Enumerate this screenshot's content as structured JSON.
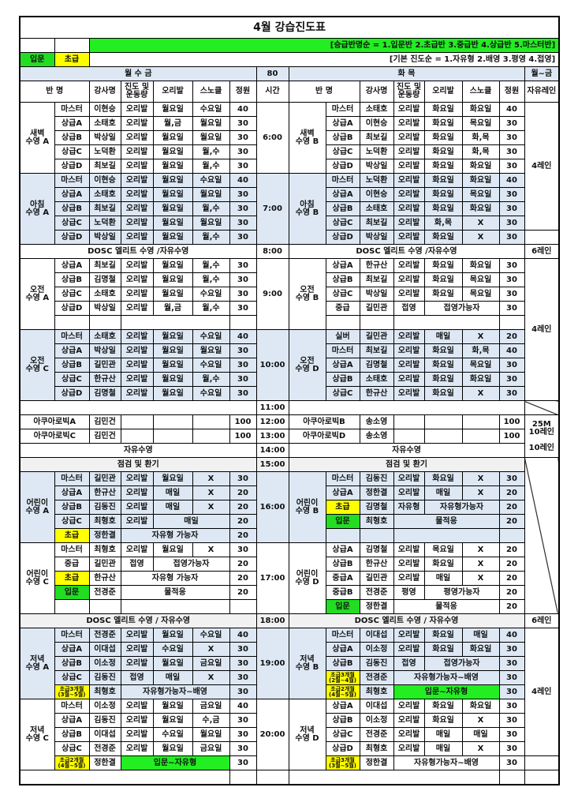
{
  "title": "4월 강습진도표",
  "legend": {
    "order_note": "[승급반명순 = 1.입문반 2.초급반 3.중급반 4.상급반 5.마스터반]",
    "progress_note": "[기본 진도순 = 1.자유형 2.배영 3.평영 4.접영]",
    "intro_label": "입문",
    "beginner_label": "초급"
  },
  "colors": {
    "intro": "#22dd22",
    "beginner": "#ffff00",
    "shade": "#dde8f4",
    "green_bar": "#22ee22"
  },
  "days": {
    "left": "월 수 금",
    "left_count": "80",
    "right": "화 목",
    "right_lane": "월~금"
  },
  "headers": {
    "class": "반 명",
    "teacher": "강사명",
    "progress": "진도 및\n운동량",
    "fins": "오리발",
    "snorkel": "스노클",
    "capacity": "정원",
    "time": "시간",
    "free_lane": "자유레인"
  },
  "lanes": {
    "l4": "4레인",
    "l6": "6레인",
    "l25": "25M\n10레인",
    "l10": "10레인"
  },
  "schedule": [
    {
      "type": "pair",
      "shade": false,
      "left": {
        "name": "새벽\n수영 A",
        "time": "6:00",
        "rows": [
          {
            "l": "마스터",
            "t": "이현승",
            "p": "오리발",
            "f": "월요일",
            "s": "수요일",
            "c": "40"
          },
          {
            "l": "상급A",
            "t": "소태호",
            "p": "오리발",
            "f": "월,금",
            "s": "월요일",
            "c": "30"
          },
          {
            "l": "상급B",
            "t": "박상일",
            "p": "오리발",
            "f": "월요일",
            "s": "월요일",
            "c": "30"
          },
          {
            "l": "상급C",
            "t": "노덕환",
            "p": "오리발",
            "f": "월요일",
            "s": "월,수",
            "c": "30"
          },
          {
            "l": "상급D",
            "t": "최보길",
            "p": "오리발",
            "f": "월요일",
            "s": "월,수",
            "c": "30"
          }
        ]
      },
      "right": {
        "name": "새벽\n수영 B",
        "rows": [
          {
            "l": "마스터",
            "t": "소태호",
            "p": "오리발",
            "f": "화요일",
            "s": "화요일",
            "c": "40"
          },
          {
            "l": "상급A",
            "t": "이현승",
            "p": "오리발",
            "f": "화요일",
            "s": "목요일",
            "c": "30"
          },
          {
            "l": "상급B",
            "t": "최보길",
            "p": "오리발",
            "f": "화요일",
            "s": "화,목",
            "c": "30"
          },
          {
            "l": "상급C",
            "t": "노덕환",
            "p": "오리발",
            "f": "화요일",
            "s": "화,목",
            "c": "30"
          },
          {
            "l": "상급D",
            "t": "박상일",
            "p": "오리발",
            "f": "화요일",
            "s": "화요일",
            "c": "30"
          }
        ]
      }
    },
    {
      "type": "pair",
      "shade": true,
      "left": {
        "name": "아침\n수영 A",
        "time": "7:00",
        "rows": [
          {
            "l": "마스터",
            "t": "이현승",
            "p": "오리발",
            "f": "월요일",
            "s": "수요일",
            "c": "40"
          },
          {
            "l": "상급A",
            "t": "소태호",
            "p": "오리발",
            "f": "월요일",
            "s": "월요일",
            "c": "30"
          },
          {
            "l": "상급B",
            "t": "최보길",
            "p": "오리발",
            "f": "월요일",
            "s": "월,수",
            "c": "30"
          },
          {
            "l": "상급C",
            "t": "노덕환",
            "p": "오리발",
            "f": "월요일",
            "s": "월요일",
            "c": "30"
          },
          {
            "l": "상급D",
            "t": "박상일",
            "p": "오리발",
            "f": "월요일",
            "s": "월,수",
            "c": "30"
          }
        ]
      },
      "right": {
        "name": "아침\n수영 B",
        "rows": [
          {
            "l": "마스터",
            "t": "노덕환",
            "p": "오리발",
            "f": "화요일",
            "s": "화요일",
            "c": "40"
          },
          {
            "l": "상급A",
            "t": "이현승",
            "p": "오리발",
            "f": "화요일",
            "s": "목요일",
            "c": "30"
          },
          {
            "l": "상급B",
            "t": "소태호",
            "p": "오리발",
            "f": "화요일",
            "s": "화요일",
            "c": "30"
          },
          {
            "l": "상급C",
            "t": "최보길",
            "p": "오리발",
            "f": "화,목",
            "s": "X",
            "c": "30"
          },
          {
            "l": "상급D",
            "t": "박상일",
            "p": "오리발",
            "f": "화요일",
            "s": "X",
            "c": "30"
          }
        ]
      }
    },
    {
      "type": "full",
      "gray": false,
      "left": "DOSC 엘리트 수영 /자유수영",
      "time": "8:00",
      "right": "DOSC 엘리트 수영 /자유수영"
    },
    {
      "type": "pair",
      "shade": false,
      "left": {
        "name": "오전\n수영 A",
        "time": "9:00",
        "rows": [
          {
            "l": "상급A",
            "t": "최보길",
            "p": "오리발",
            "f": "월요일",
            "s": "월,수",
            "c": "30"
          },
          {
            "l": "상급B",
            "t": "김명철",
            "p": "오리발",
            "f": "월요일",
            "s": "월,수",
            "c": "30"
          },
          {
            "l": "상급C",
            "t": "소태호",
            "p": "오리발",
            "f": "월요일",
            "s": "수요일",
            "c": "30"
          },
          {
            "l": "상급D",
            "t": "박상일",
            "p": "오리발",
            "f": "월,금",
            "s": "월,수",
            "c": "30"
          },
          {}
        ]
      },
      "right": {
        "name": "오전\n수영 B",
        "rows": [
          {
            "l": "상급A",
            "t": "한규산",
            "p": "오리발",
            "f": "화요일",
            "s": "화요일",
            "c": "30"
          },
          {
            "l": "상급B",
            "t": "최보길",
            "p": "오리발",
            "f": "화요일",
            "s": "목요일",
            "c": "30"
          },
          {
            "l": "상급C",
            "t": "박상일",
            "p": "오리발",
            "f": "화요일",
            "s": "목요일",
            "c": "30"
          },
          {
            "l": "중급",
            "t": "길민관",
            "p": "접영",
            "fs": "접영가능자",
            "c": "30"
          },
          {}
        ]
      }
    },
    {
      "type": "pair",
      "shade": true,
      "left": {
        "name": "오전\n수영 C",
        "time": "10:00",
        "rows": [
          {
            "l": "마스터",
            "t": "소태호",
            "p": "오리발",
            "f": "월요일",
            "s": "수요일",
            "c": "40"
          },
          {
            "l": "상급A",
            "t": "박상일",
            "p": "오리발",
            "f": "월요일",
            "s": "월요일",
            "c": "30"
          },
          {
            "l": "상급B",
            "t": "길민관",
            "p": "오리발",
            "f": "월요일",
            "s": "수요일",
            "c": "30"
          },
          {
            "l": "상급C",
            "t": "한규산",
            "p": "오리발",
            "f": "월요일",
            "s": "월,수",
            "c": "30"
          },
          {
            "l": "상급D",
            "t": "김명철",
            "p": "오리발",
            "f": "월요일",
            "s": "수요일",
            "c": "30"
          }
        ]
      },
      "right": {
        "name": "오전\n수영 D",
        "rows": [
          {
            "l": "실버",
            "t": "길민관",
            "p": "오리발",
            "f": "매일",
            "s": "X",
            "c": "20"
          },
          {
            "l": "마스터",
            "t": "최보길",
            "p": "오리발",
            "f": "화요일",
            "s": "화,목",
            "c": "40"
          },
          {
            "l": "상급A",
            "t": "김명철",
            "p": "오리발",
            "f": "화요일",
            "s": "목요일",
            "c": "30"
          },
          {
            "l": "상급B",
            "t": "소태호",
            "p": "오리발",
            "f": "화요일",
            "s": "화요일",
            "c": "30"
          },
          {
            "l": "상급C",
            "t": "한규산",
            "p": "오리발",
            "f": "화요일",
            "s": "X",
            "c": "30"
          }
        ]
      }
    },
    {
      "type": "full",
      "gray": false,
      "left": "",
      "time": "11:00",
      "right": ""
    },
    {
      "type": "aqua",
      "time": "12:00",
      "left": {
        "name": "아쿠아로빅A",
        "t": "김민건",
        "c": "100"
      },
      "right": {
        "name": "아쿠아로빅B",
        "t": "송소영",
        "c": "100"
      }
    },
    {
      "type": "aqua",
      "time": "13:00",
      "left": {
        "name": "아쿠아로빅C",
        "t": "김민건",
        "c": "100"
      },
      "right": {
        "name": "아쿠아로빅D",
        "t": "송소영",
        "c": "100"
      }
    },
    {
      "type": "full",
      "gray": false,
      "left": "자유수영",
      "time": "14:00",
      "right": "자유수영"
    },
    {
      "type": "full",
      "gray": true,
      "left": "점검 및 환기",
      "time": "15:00",
      "right": "점검 및 환기"
    },
    {
      "type": "pair",
      "shade": true,
      "left": {
        "name": "어린이\n수영 A",
        "time": "16:00",
        "rows": [
          {
            "l": "마스터",
            "t": "길민관",
            "p": "오리발",
            "f": "월요일",
            "s": "X",
            "c": "30"
          },
          {
            "l": "상급A",
            "t": "한규산",
            "p": "오리발",
            "f": "매일",
            "s": "X",
            "c": "20"
          },
          {
            "l": "상급B",
            "t": "김동진",
            "p": "오리발",
            "f": "매일",
            "s": "X",
            "c": "20"
          },
          {
            "l": "상급C",
            "t": "최형호",
            "p": "오리발",
            "fs": "매일",
            "c": "20"
          },
          {
            "l": "초급",
            "t": "정한결",
            "pfs": "자유형 가능자",
            "c": "20"
          }
        ]
      },
      "right": {
        "name": "어린이\n수영 B",
        "rows": [
          {
            "l": "마스터",
            "t": "김동진",
            "p": "오리발",
            "f": "화요일",
            "s": "X",
            "c": "30"
          },
          {
            "l": "상급A",
            "t": "정한결",
            "p": "오리발",
            "f": "매일",
            "s": "X",
            "c": "20"
          },
          {
            "l": "초급",
            "t": "김명철",
            "p": "자유형",
            "fs": "자유형가능자",
            "c": "20"
          },
          {
            "l": "입문",
            "t": "최형호",
            "pfs": "물적응",
            "c": "20"
          },
          {}
        ]
      }
    },
    {
      "type": "pair",
      "shade": false,
      "left": {
        "name": "어린이\n수영 C",
        "time": "17:00",
        "rows": [
          {
            "l": "마스터",
            "t": "최형호",
            "p": "오리발",
            "f": "월요일",
            "s": "X",
            "c": "30"
          },
          {
            "l": "중급",
            "t": "길민관",
            "p": "접영",
            "fs": "접영가능자",
            "c": "20"
          },
          {
            "l": "초급",
            "t": "한규산",
            "pfs": "자유형 가능자",
            "c": "20"
          },
          {
            "l": "입문",
            "t": "전경준",
            "pfs": "물적응",
            "c": "20"
          },
          {}
        ]
      },
      "right": {
        "name": "어린이\n수영 D",
        "rows": [
          {
            "l": "상급A",
            "t": "김명철",
            "p": "오리발",
            "f": "목요일",
            "s": "X",
            "c": "20"
          },
          {
            "l": "상급B",
            "t": "한규산",
            "p": "오리발",
            "f": "화요일",
            "s": "X",
            "c": "20"
          },
          {
            "l": "중급A",
            "t": "길민관",
            "p": "오리발",
            "f": "매일",
            "s": "X",
            "c": "20"
          },
          {
            "l": "중급B",
            "t": "전경준",
            "p": "평영",
            "fs": "평영가능자",
            "c": "20"
          },
          {
            "l": "입문",
            "t": "정한결",
            "pfs": "물적응",
            "c": "20"
          }
        ]
      }
    },
    {
      "type": "full",
      "gray": true,
      "left": "DOSC 엘리트 수영 / 자유수영",
      "time": "18:00",
      "right": "DOSC 엘리트 수영 / 자유수영"
    },
    {
      "type": "pair",
      "shade": true,
      "left": {
        "name": "저녁\n수영 A",
        "time": "19:00",
        "rows": [
          {
            "l": "마스터",
            "t": "전경준",
            "p": "오리발",
            "f": "월요일",
            "s": "수요일",
            "c": "40"
          },
          {
            "l": "상급A",
            "t": "이대섭",
            "p": "오리발",
            "f": "수요일",
            "s": "X",
            "c": "30"
          },
          {
            "l": "상급B",
            "t": "이소정",
            "p": "오리발",
            "f": "월요일",
            "s": "금요일",
            "c": "30"
          },
          {
            "l": "상급C",
            "t": "김동진",
            "p": "접영",
            "f": "매일",
            "s": "X",
            "c": "30"
          },
          {
            "l": "초급3개월\n(3월~5월)",
            "t": "최형호",
            "pfs": "자유형가능자~배영",
            "c": "30"
          }
        ]
      },
      "right": {
        "name": "저녁\n수영 B",
        "rows": [
          {
            "l": "마스터",
            "t": "이대섭",
            "p": "오리발",
            "f": "화요일",
            "s": "매일",
            "c": "40"
          },
          {
            "l": "상급A",
            "t": "이소정",
            "p": "오리발",
            "f": "화요일",
            "s": "화요일",
            "c": "30"
          },
          {
            "l": "상급B",
            "t": "김동진",
            "p": "접영",
            "fs": "접영가능자",
            "c": "30"
          },
          {
            "l": "초급3개월\n(2월~4월)",
            "t": "전경준",
            "pfs": "자유형가능자~배영",
            "c": "30"
          },
          {
            "l": "초급2개월\n(4월~5월)",
            "t": "최형호",
            "pfs": "입문~자유형",
            "hl": true,
            "c": "30"
          }
        ]
      }
    },
    {
      "type": "pair",
      "shade": false,
      "left": {
        "name": "저녁\n수영 C",
        "time": "20:00",
        "rows": [
          {
            "l": "마스터",
            "t": "이소정",
            "p": "오리발",
            "f": "월요일",
            "s": "금요일",
            "c": "40"
          },
          {
            "l": "상급A",
            "t": "김동진",
            "p": "오리발",
            "f": "월요일",
            "s": "수,금",
            "c": "30"
          },
          {
            "l": "상급B",
            "t": "이대섭",
            "p": "오리발",
            "f": "수요일",
            "s": "월요일",
            "c": "30"
          },
          {
            "l": "상급C",
            "t": "전경준",
            "p": "오리발",
            "f": "월요일",
            "s": "금요일",
            "c": "30"
          },
          {
            "l": "초급2개월\n(4월~5월)",
            "t": "정한결",
            "pfs": "입문~자유형",
            "hl": true,
            "c": "30"
          }
        ]
      },
      "right": {
        "name": "저녁\n수영 D",
        "rows": [
          {
            "l": "상급A",
            "t": "이대섭",
            "p": "오리발",
            "f": "화요일",
            "s": "화요일",
            "c": "30"
          },
          {
            "l": "상급B",
            "t": "이소정",
            "p": "오리발",
            "f": "화요일",
            "s": "X",
            "c": "30"
          },
          {
            "l": "상급C",
            "t": "전경준",
            "p": "오리발",
            "f": "매일",
            "s": "매일",
            "c": "30"
          },
          {
            "l": "상급D",
            "t": "최형호",
            "p": "오리발",
            "f": "매일",
            "s": "X",
            "c": "30"
          },
          {
            "l": "초급3개월\n(3월~5월)",
            "t": "정한결",
            "pfs": "자유형가능자~배영",
            "c": "30"
          }
        ]
      }
    },
    {
      "type": "blank"
    }
  ]
}
